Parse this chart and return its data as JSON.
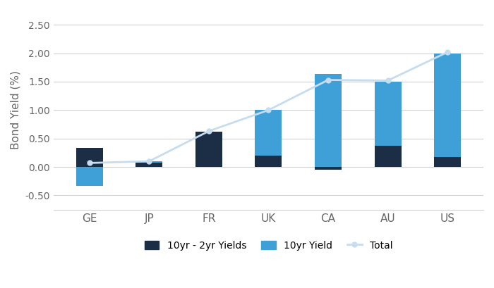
{
  "categories": [
    "GE",
    "JP",
    "FR",
    "UK",
    "CA",
    "AU",
    "US"
  ],
  "yield_spread": [
    0.33,
    0.07,
    0.62,
    0.2,
    -0.05,
    0.37,
    0.17
  ],
  "yield_10yr_above": [
    -0.33,
    0.03,
    0.0,
    0.8,
    1.63,
    1.13,
    1.83
  ],
  "total_line": [
    0.07,
    0.1,
    0.63,
    1.0,
    1.53,
    1.52,
    2.02
  ],
  "color_spread": "#1c2e45",
  "color_10yr": "#3fa0d8",
  "color_total": "#c5ddef",
  "ylabel": "Bond Yield (%)",
  "ylim": [
    -0.75,
    2.75
  ],
  "yticks": [
    -0.5,
    0.0,
    0.5,
    1.0,
    1.5,
    2.0,
    2.5
  ],
  "ytick_labels": [
    "-0.50",
    "0.00",
    "0.50",
    "1.00",
    "1.50",
    "2.00",
    "2.50"
  ],
  "legend_spread": "10yr - 2yr Yields",
  "legend_10yr": "10yr Yield",
  "legend_total": "Total",
  "bar_width": 0.45,
  "background_color": "#ffffff",
  "grid_color": "#d0d0d0"
}
